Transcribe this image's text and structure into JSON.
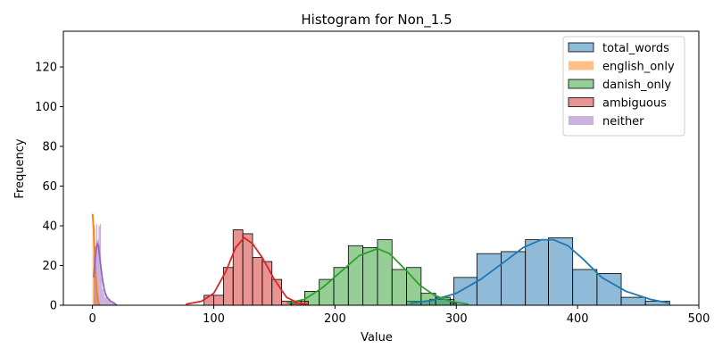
{
  "chart_data": {
    "type": "histogram",
    "title": "Histogram for Non_1.5",
    "xlabel": "Value",
    "ylabel": "Frequency",
    "xlim": [
      -24,
      500
    ],
    "ylim": [
      0,
      138
    ],
    "xticks": [
      0,
      100,
      200,
      300,
      400,
      500
    ],
    "yticks": [
      0,
      20,
      40,
      60,
      80,
      100,
      120
    ],
    "legend_position": "top-right",
    "grid": false,
    "series": [
      {
        "name": "total_words",
        "color": "#1f77b4",
        "edge": true,
        "bins": [
          {
            "x0": 259,
            "x1": 278,
            "count": 2
          },
          {
            "x0": 278,
            "x1": 298,
            "count": 3
          },
          {
            "x0": 298,
            "x1": 317,
            "count": 14
          },
          {
            "x0": 317,
            "x1": 337,
            "count": 26
          },
          {
            "x0": 337,
            "x1": 357,
            "count": 27
          },
          {
            "x0": 357,
            "x1": 376,
            "count": 33
          },
          {
            "x0": 376,
            "x1": 396,
            "count": 34
          },
          {
            "x0": 396,
            "x1": 416,
            "count": 18
          },
          {
            "x0": 416,
            "x1": 436,
            "count": 16
          },
          {
            "x0": 436,
            "x1": 456,
            "count": 4
          },
          {
            "x0": 456,
            "x1": 476,
            "count": 2
          }
        ],
        "kde": [
          [
            262,
            1
          ],
          [
            280,
            2.5
          ],
          [
            300,
            6
          ],
          [
            320,
            13
          ],
          [
            340,
            22
          ],
          [
            355,
            29
          ],
          [
            370,
            33
          ],
          [
            380,
            33
          ],
          [
            392,
            30
          ],
          [
            405,
            23
          ],
          [
            420,
            14
          ],
          [
            440,
            7
          ],
          [
            460,
            3
          ],
          [
            476,
            1
          ]
        ]
      },
      {
        "name": "english_only",
        "color": "#ff7f0e",
        "edge": false,
        "bins": [
          {
            "x0": 0,
            "x1": 1,
            "count": 46
          },
          {
            "x0": 1,
            "x1": 2,
            "count": 40
          },
          {
            "x0": 2,
            "x1": 3,
            "count": 14
          },
          {
            "x0": 3,
            "x1": 4,
            "count": 6
          },
          {
            "x0": 4,
            "x1": 5,
            "count": 3
          }
        ],
        "kde": [
          [
            0,
            46
          ],
          [
            1,
            38
          ],
          [
            2,
            24
          ],
          [
            3,
            12
          ],
          [
            4,
            5
          ],
          [
            5,
            1.5
          ],
          [
            6,
            0
          ]
        ]
      },
      {
        "name": "danish_only",
        "color": "#2ca02c",
        "edge": true,
        "bins": [
          {
            "x0": 163,
            "x1": 175,
            "count": 1
          },
          {
            "x0": 175,
            "x1": 187,
            "count": 7
          },
          {
            "x0": 187,
            "x1": 199,
            "count": 13
          },
          {
            "x0": 199,
            "x1": 211,
            "count": 19
          },
          {
            "x0": 211,
            "x1": 223,
            "count": 30
          },
          {
            "x0": 223,
            "x1": 235,
            "count": 29
          },
          {
            "x0": 235,
            "x1": 247,
            "count": 33
          },
          {
            "x0": 247,
            "x1": 259,
            "count": 18
          },
          {
            "x0": 259,
            "x1": 271,
            "count": 19
          },
          {
            "x0": 271,
            "x1": 283,
            "count": 6
          },
          {
            "x0": 283,
            "x1": 295,
            "count": 4
          },
          {
            "x0": 295,
            "x1": 300,
            "count": 1
          }
        ],
        "kde": [
          [
            160,
            1
          ],
          [
            175,
            3
          ],
          [
            190,
            9
          ],
          [
            205,
            17
          ],
          [
            220,
            25
          ],
          [
            235,
            28.5
          ],
          [
            245,
            26
          ],
          [
            258,
            18
          ],
          [
            270,
            10
          ],
          [
            282,
            5
          ],
          [
            295,
            2
          ],
          [
            310,
            0.5
          ]
        ]
      },
      {
        "name": "ambiguous",
        "color": "#d62728",
        "edge": true,
        "bins": [
          {
            "x0": 92,
            "x1": 100,
            "count": 5
          },
          {
            "x0": 100,
            "x1": 108,
            "count": 5
          },
          {
            "x0": 108,
            "x1": 116,
            "count": 19
          },
          {
            "x0": 116,
            "x1": 124,
            "count": 38
          },
          {
            "x0": 124,
            "x1": 132,
            "count": 36
          },
          {
            "x0": 132,
            "x1": 140,
            "count": 24
          },
          {
            "x0": 140,
            "x1": 148,
            "count": 22
          },
          {
            "x0": 148,
            "x1": 156,
            "count": 13
          },
          {
            "x0": 156,
            "x1": 164,
            "count": 2
          },
          {
            "x0": 164,
            "x1": 172,
            "count": 2
          },
          {
            "x0": 172,
            "x1": 178,
            "count": 2
          }
        ],
        "kde": [
          [
            77,
            0.5
          ],
          [
            90,
            2
          ],
          [
            100,
            6
          ],
          [
            110,
            17
          ],
          [
            118,
            29
          ],
          [
            125,
            34
          ],
          [
            132,
            31
          ],
          [
            140,
            24
          ],
          [
            150,
            13
          ],
          [
            160,
            4
          ],
          [
            170,
            1
          ],
          [
            178,
            0.3
          ]
        ]
      },
      {
        "name": "neither",
        "color": "#9467bd",
        "edge": false,
        "bins": [
          {
            "x0": 1,
            "x1": 2,
            "count": 25
          },
          {
            "x0": 2,
            "x1": 3,
            "count": 30
          },
          {
            "x0": 3,
            "x1": 4,
            "count": 41
          },
          {
            "x0": 4,
            "x1": 5,
            "count": 33
          },
          {
            "x0": 5,
            "x1": 6,
            "count": 40
          },
          {
            "x0": 6,
            "x1": 7,
            "count": 41
          },
          {
            "x0": 7,
            "x1": 8,
            "count": 14
          },
          {
            "x0": 8,
            "x1": 9,
            "count": 8
          },
          {
            "x0": 9,
            "x1": 10,
            "count": 6
          },
          {
            "x0": 10,
            "x1": 12,
            "count": 4
          },
          {
            "x0": 12,
            "x1": 15,
            "count": 3
          },
          {
            "x0": 15,
            "x1": 19,
            "count": 1
          }
        ],
        "kde": [
          [
            1,
            14
          ],
          [
            3,
            28
          ],
          [
            4,
            31
          ],
          [
            5,
            30
          ],
          [
            6,
            24
          ],
          [
            8,
            14
          ],
          [
            10,
            7
          ],
          [
            12,
            4
          ],
          [
            15,
            2
          ],
          [
            18,
            1
          ],
          [
            20,
            0
          ]
        ]
      }
    ]
  }
}
